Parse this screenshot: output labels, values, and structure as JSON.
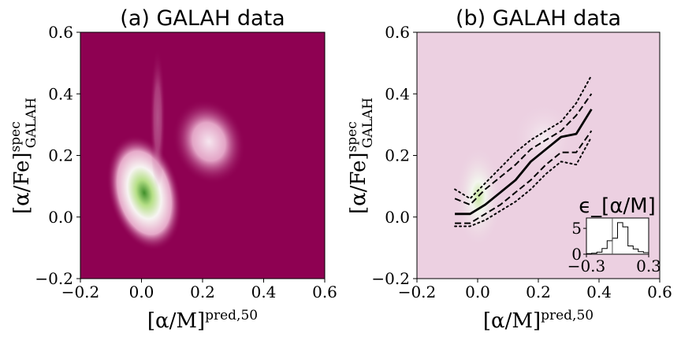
{
  "chart_data": [
    {
      "panel": "a",
      "type": "heatmap",
      "title": "(a) GALAH data",
      "xlabel": "[α/M]",
      "xlabel_sup": "pred,50",
      "ylabel": "[α/Fe]",
      "ylabel_sup": "spec",
      "ylabel_sub": "GALAH",
      "xlim": [
        -0.2,
        0.6
      ],
      "ylim": [
        -0.2,
        0.6
      ],
      "xticks": [
        "−0.2",
        "0.0",
        "0.2",
        "0.4",
        "0.6"
      ],
      "yticks": [
        "−0.2",
        "0.0",
        "0.2",
        "0.4",
        "0.6"
      ],
      "colormap": "PiYG",
      "background_color": "#8e0152",
      "density_peaks": [
        {
          "x": -0.01,
          "y": 0.02,
          "level": "high"
        },
        {
          "x": 0.24,
          "y": 0.24,
          "level": "medium"
        }
      ]
    },
    {
      "panel": "b",
      "type": "line",
      "title": "(b) GALAH data",
      "xlabel": "[α/M]",
      "xlabel_sup": "pred,50",
      "ylabel": "[α/Fe]",
      "ylabel_sup": "spec",
      "ylabel_sub": "GALAH",
      "xlim": [
        -0.2,
        0.6
      ],
      "ylim": [
        -0.2,
        0.6
      ],
      "xticks": [
        "−0.2",
        "0.0",
        "0.2",
        "0.4",
        "0.6"
      ],
      "yticks": [
        "−0.2",
        "0.0",
        "0.2",
        "0.4",
        "0.6"
      ],
      "background_color": "#ecd0e1",
      "x": [
        -0.075,
        -0.025,
        0.025,
        0.075,
        0.125,
        0.175,
        0.225,
        0.275,
        0.325,
        0.375
      ],
      "series": [
        {
          "style": "solid",
          "values": [
            0.01,
            0.01,
            0.04,
            0.08,
            0.12,
            0.18,
            0.22,
            0.26,
            0.27,
            0.35
          ]
        },
        {
          "style": "dashed",
          "values": [
            0.06,
            0.04,
            0.09,
            0.13,
            0.17,
            0.22,
            0.25,
            0.28,
            0.33,
            0.4
          ]
        },
        {
          "style": "dashed",
          "values": [
            -0.02,
            -0.02,
            0.01,
            0.04,
            0.08,
            0.12,
            0.17,
            0.21,
            0.21,
            0.28
          ]
        },
        {
          "style": "dotted",
          "values": [
            0.09,
            0.06,
            0.11,
            0.16,
            0.21,
            0.25,
            0.28,
            0.31,
            0.37,
            0.46
          ]
        },
        {
          "style": "dotted",
          "values": [
            -0.03,
            -0.03,
            -0.01,
            0.02,
            0.05,
            0.09,
            0.14,
            0.18,
            0.17,
            0.26
          ]
        }
      ],
      "inset": {
        "type": "histogram",
        "title": "ϵ_[α/M]",
        "xlim": [
          -0.3,
          0.3
        ],
        "ylim": [
          0,
          7
        ],
        "xticks": [
          "−0.3",
          "0.3"
        ],
        "yticks": [
          "0",
          "5"
        ],
        "bins": [
          -0.3,
          -0.25,
          -0.2,
          -0.15,
          -0.1,
          -0.05,
          0.0,
          0.05,
          0.1,
          0.15,
          0.2,
          0.25,
          0.3
        ],
        "counts": [
          0.1,
          0.2,
          0.4,
          1.1,
          2.6,
          3.1,
          6.1,
          5.3,
          1.6,
          1.0,
          0.5,
          0.3
        ],
        "vline_x": -0.05
      }
    }
  ]
}
